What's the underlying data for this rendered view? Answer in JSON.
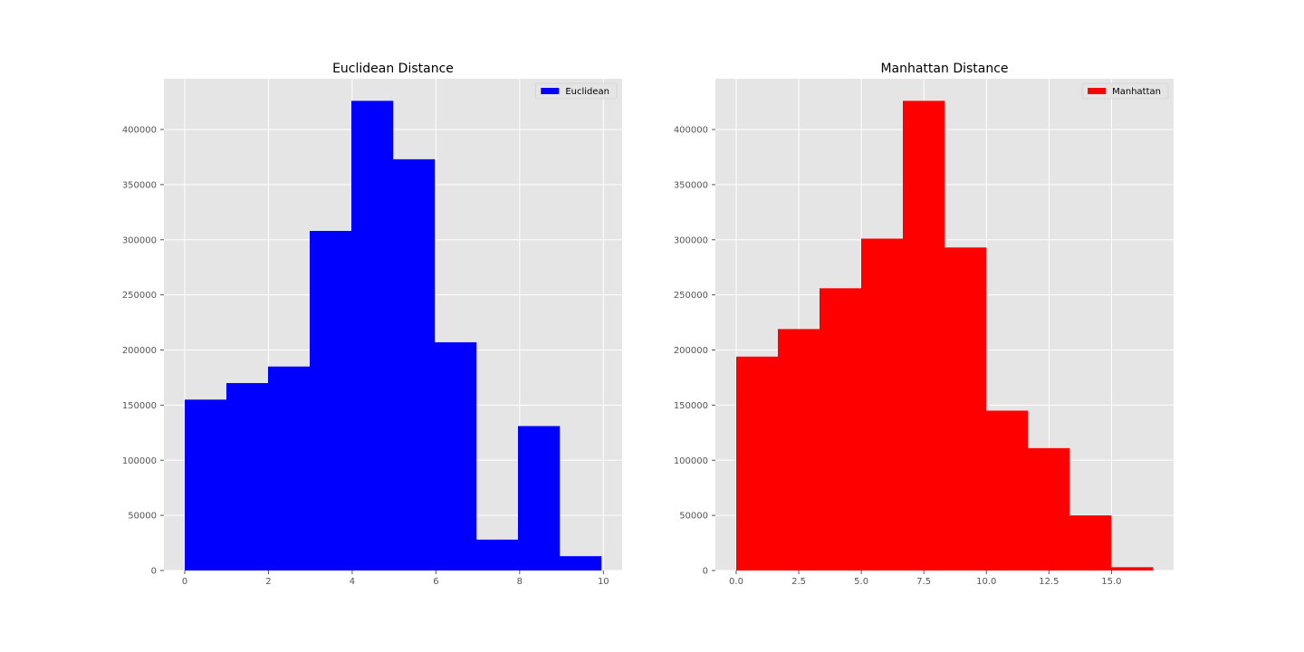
{
  "chart_data": [
    {
      "type": "bar",
      "title": "Euclidean Distance",
      "xlabel": "",
      "ylabel": "",
      "bin_edges": [
        0,
        0.995,
        1.99,
        2.985,
        3.98,
        4.975,
        5.97,
        6.965,
        7.96,
        8.955,
        9.95
      ],
      "values": [
        155000,
        170000,
        185000,
        308000,
        426000,
        373000,
        207000,
        28000,
        131000,
        13000
      ],
      "xlim": [
        -0.4975,
        10.4475
      ],
      "ylim": [
        0,
        446000
      ],
      "xticks": [
        0,
        2,
        4,
        6,
        8,
        10
      ],
      "xtick_labels": [
        "0",
        "2",
        "4",
        "6",
        "8",
        "10"
      ],
      "yticks": [
        0,
        50000,
        100000,
        150000,
        200000,
        250000,
        300000,
        350000,
        400000
      ],
      "ytick_labels": [
        "0",
        "50000",
        "100000",
        "150000",
        "200000",
        "250000",
        "300000",
        "350000",
        "400000"
      ],
      "grid": true,
      "legend": {
        "placement": "top-right",
        "entries": [
          {
            "label": "Euclidean",
            "color": "#0000ff"
          }
        ]
      },
      "color": "#0000ff"
    },
    {
      "type": "bar",
      "title": "Manhattan Distance",
      "xlabel": "",
      "ylabel": "",
      "bin_edges": [
        0,
        1.665,
        3.33,
        4.995,
        6.66,
        8.325,
        9.99,
        11.655,
        13.32,
        14.985,
        16.65
      ],
      "values": [
        194000,
        219000,
        256000,
        301000,
        426000,
        293000,
        145000,
        111000,
        50000,
        3000
      ],
      "xlim": [
        -0.8325,
        17.4825
      ],
      "ylim": [
        0,
        446000
      ],
      "xticks": [
        0,
        2.5,
        5,
        7.5,
        10,
        12.5,
        15
      ],
      "xtick_labels": [
        "0.0",
        "2.5",
        "5.0",
        "7.5",
        "10.0",
        "12.5",
        "15.0"
      ],
      "yticks": [
        0,
        50000,
        100000,
        150000,
        200000,
        250000,
        300000,
        350000,
        400000
      ],
      "ytick_labels": [
        "0",
        "50000",
        "100000",
        "150000",
        "200000",
        "250000",
        "300000",
        "350000",
        "400000"
      ],
      "grid": true,
      "legend": {
        "placement": "top-right",
        "entries": [
          {
            "label": "Manhattan",
            "color": "#ff0000"
          }
        ]
      },
      "color": "#ff0000"
    }
  ]
}
